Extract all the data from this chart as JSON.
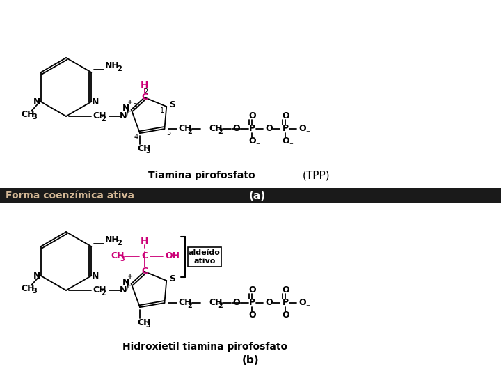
{
  "bg_color": "#ffffff",
  "divider_bg": "#1a1a1a",
  "divider_text": "Forma coenzímica ativa",
  "divider_text_color": "#d4b896",
  "label_a": "(a)",
  "label_b": "(b)",
  "tiamina_label": "Tiamina pirofosfato",
  "tpp_label": "(TPP)",
  "hidroxietil_label": "Hidroxietil tiamina pirofosfato",
  "aldeido_line1": "aldeído",
  "aldeido_line2": "ativo",
  "magenta": "#cc0077",
  "black": "#000000"
}
